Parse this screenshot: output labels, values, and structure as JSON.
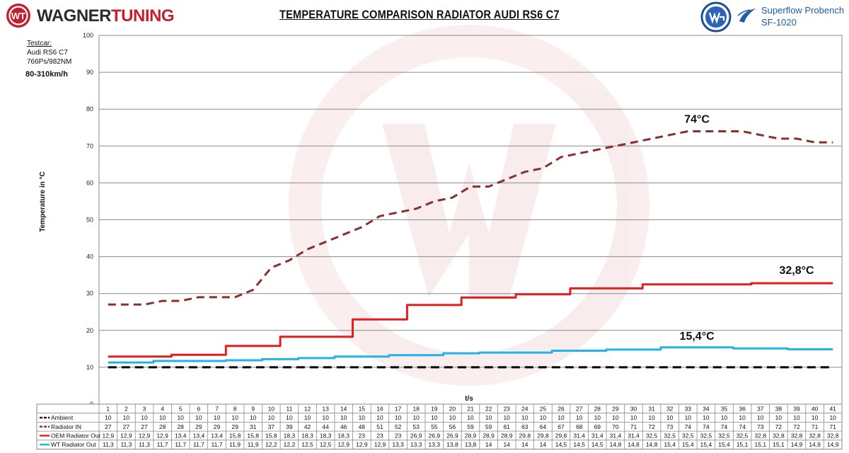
{
  "brand": {
    "name_part1": "WAGNER",
    "name_part2": "TUNING",
    "logo_icon": "wt-circle-logo-icon",
    "logo_letters": "WT"
  },
  "header": {
    "title": "TEMPERATURE COMPARISON RADIATOR AUDI RS6 C7"
  },
  "bench": {
    "line1": "Superflow Probench",
    "line2": "SF-1020",
    "badge_icon": "wg-badge-icon",
    "bench_icon": "superflow-icon"
  },
  "testcar": {
    "label": "Testcar:",
    "model": "Audi RS6 C7",
    "power": "766Ps/982NM",
    "speed_range": "80-310km/h"
  },
  "chart_data": {
    "type": "line",
    "ylabel": "Temperature in °C",
    "xlabel": "t/s",
    "ylim": [
      0,
      100
    ],
    "yticks": [
      0,
      10,
      20,
      30,
      40,
      50,
      60,
      70,
      80,
      90,
      100
    ],
    "grid": true,
    "legend": "table-below",
    "x": [
      1,
      2,
      3,
      4,
      5,
      6,
      7,
      8,
      9,
      10,
      11,
      12,
      13,
      14,
      15,
      16,
      17,
      18,
      19,
      20,
      21,
      22,
      23,
      24,
      25,
      26,
      27,
      28,
      29,
      30,
      31,
      32,
      33,
      34,
      35,
      36,
      37,
      38,
      39,
      40,
      41
    ],
    "series": [
      {
        "name": "Ambient",
        "color": "#000000",
        "style": "dashed",
        "values": [
          10,
          10,
          10,
          10,
          10,
          10,
          10,
          10,
          10,
          10,
          10,
          10,
          10,
          10,
          10,
          10,
          10,
          10,
          10,
          10,
          10,
          10,
          10,
          10,
          10,
          10,
          10,
          10,
          10,
          10,
          10,
          10,
          10,
          10,
          10,
          10,
          10,
          10,
          10,
          10,
          10
        ],
        "labels": [
          "10",
          "10",
          "10",
          "10",
          "10",
          "10",
          "10",
          "10",
          "10",
          "10",
          "10",
          "10",
          "10",
          "10",
          "10",
          "10",
          "10",
          "10",
          "10",
          "10",
          "10",
          "10",
          "10",
          "10",
          "10",
          "10",
          "10",
          "10",
          "10",
          "10",
          "10",
          "10",
          "10",
          "10",
          "10",
          "10",
          "10",
          "10",
          "10",
          "10",
          "10"
        ]
      },
      {
        "name": "Radiator IN",
        "color": "#8b2f2f",
        "style": "dashed",
        "values": [
          27,
          27,
          27,
          28,
          28,
          29,
          29,
          29,
          31,
          37,
          39,
          42,
          44,
          46,
          48,
          51,
          52,
          53,
          55,
          56,
          59,
          59,
          61,
          63,
          64,
          67,
          68,
          69,
          70,
          71,
          72,
          73,
          74,
          74,
          74,
          74,
          73,
          72,
          72,
          71,
          71
        ],
        "labels": [
          "27",
          "27",
          "27",
          "28",
          "28",
          "29",
          "29",
          "29",
          "31",
          "37",
          "39",
          "42",
          "44",
          "46",
          "48",
          "51",
          "52",
          "53",
          "55",
          "56",
          "59",
          "59",
          "61",
          "63",
          "64",
          "67",
          "68",
          "69",
          "70",
          "71",
          "72",
          "73",
          "74",
          "74",
          "74",
          "74",
          "73",
          "72",
          "72",
          "71",
          "71"
        ]
      },
      {
        "name": "OEM Radiator Out",
        "color": "#e01f1f",
        "style": "step",
        "values": [
          12.9,
          12.9,
          12.9,
          12.9,
          13.4,
          13.4,
          13.4,
          15.8,
          15.8,
          15.8,
          18.3,
          18.3,
          18.3,
          18.3,
          23,
          23,
          23,
          26.9,
          26.9,
          26.9,
          28.9,
          28.9,
          28.9,
          29.8,
          29.8,
          29.8,
          31.4,
          31.4,
          31.4,
          31.4,
          32.5,
          32.5,
          32.5,
          32.5,
          32.5,
          32.5,
          32.8,
          32.8,
          32.8,
          32.8,
          32.8
        ],
        "labels": [
          "12,9",
          "12,9",
          "12,9",
          "12,9",
          "13,4",
          "13,4",
          "13,4",
          "15,8",
          "15,8",
          "15,8",
          "18,3",
          "18,3",
          "18,3",
          "18,3",
          "23",
          "23",
          "23",
          "26,9",
          "26,9",
          "26,9",
          "28,9",
          "28,9",
          "28,9",
          "29,8",
          "29,8",
          "29,8",
          "31,4",
          "31,4",
          "31,4",
          "31,4",
          "32,5",
          "32,5",
          "32,5",
          "32,5",
          "32,5",
          "32,5",
          "32,8",
          "32,8",
          "32,8",
          "32,8",
          "32,8"
        ]
      },
      {
        "name": "WT Radiator Out",
        "color": "#22b3e8",
        "style": "step",
        "values": [
          11.3,
          11.3,
          11.3,
          11.7,
          11.7,
          11.7,
          11.7,
          11.9,
          11.9,
          12.2,
          12.2,
          12.5,
          12.5,
          12.9,
          12.9,
          12.9,
          13.3,
          13.3,
          13.3,
          13.8,
          13.8,
          14,
          14,
          14,
          14,
          14.5,
          14.5,
          14.5,
          14.8,
          14.8,
          14.8,
          15.4,
          15.4,
          15.4,
          15.4,
          15.1,
          15.1,
          15.1,
          14.9,
          14.9,
          14.9
        ],
        "labels": [
          "11,3",
          "11,3",
          "11,3",
          "11,7",
          "11,7",
          "11,7",
          "11,7",
          "11,9",
          "11,9",
          "12,2",
          "12,2",
          "12,5",
          "12,5",
          "12,9",
          "12,9",
          "12,9",
          "13,3",
          "13,3",
          "13,3",
          "13,8",
          "13,8",
          "14",
          "14",
          "14",
          "14",
          "14,5",
          "14,5",
          "14,5",
          "14,8",
          "14,8",
          "14,8",
          "15,4",
          "15,4",
          "15,4",
          "15,4",
          "15,1",
          "15,1",
          "15,1",
          "14,9",
          "14,9",
          "14,9"
        ]
      }
    ],
    "annotations": [
      {
        "text": "74°C",
        "series": 1,
        "at_x": 33.5
      },
      {
        "text": "32,8°C",
        "series": 2,
        "at_x": 39
      },
      {
        "text": "15,4°C",
        "series": 3,
        "at_x": 33.5
      }
    ]
  }
}
